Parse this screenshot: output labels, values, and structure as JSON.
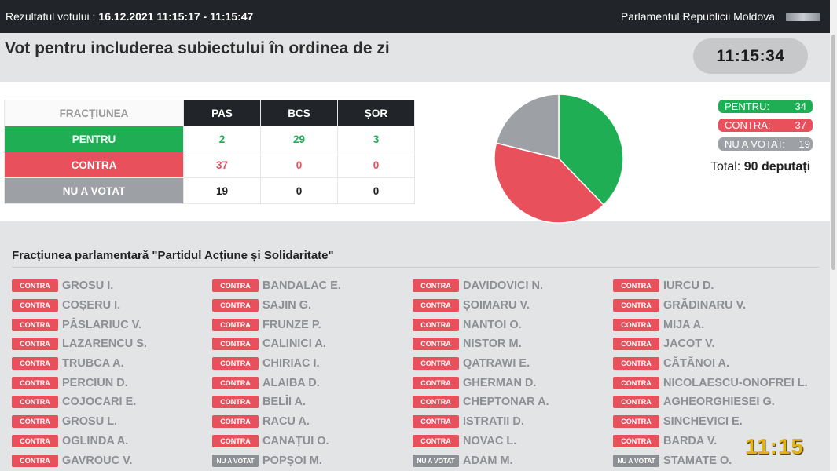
{
  "topbar": {
    "label": "Rezultatul votului :",
    "datetime": "16.12.2021 11:15:17 - 11:15:47",
    "institution": "Parlamentul Republicii Moldova"
  },
  "header": {
    "title": "Vot pentru includerea subiectului în ordinea de zi",
    "clock": "11:15:34"
  },
  "table": {
    "fraction_header": "FRACȚIUNEA",
    "parties": [
      "PAS",
      "BCS",
      "ȘOR"
    ],
    "rows": [
      {
        "label": "PENTRU",
        "values": [
          "2",
          "29",
          "3"
        ]
      },
      {
        "label": "CONTRA",
        "values": [
          "37",
          "0",
          "0"
        ]
      },
      {
        "label": "NU A VOTAT",
        "values": [
          "19",
          "0",
          "0"
        ]
      }
    ]
  },
  "chart_data": {
    "type": "pie",
    "categories": [
      "PENTRU",
      "CONTRA",
      "NU A VOTAT"
    ],
    "values": [
      34,
      37,
      19
    ],
    "colors": [
      "#1fae53",
      "#e8505b",
      "#9da0a4"
    ]
  },
  "legend": {
    "pentru_label": "PENTRU:",
    "pentru_value": "34",
    "contra_label": "CONTRA:",
    "contra_value": "37",
    "nu_label": "NU A VOTAT:",
    "nu_value": "19",
    "total_label": "Total:",
    "total_value": "90 deputați"
  },
  "faction": {
    "title": "Fracțiunea parlamentară \"Partidul Acțiune și Solidaritate\"",
    "columns": [
      [
        {
          "vote": "CONTRA",
          "name": "GROSU I."
        },
        {
          "vote": "CONTRA",
          "name": "COȘERU I."
        },
        {
          "vote": "CONTRA",
          "name": "PÂSLARIUC V."
        },
        {
          "vote": "CONTRA",
          "name": "LAZARENCU S."
        },
        {
          "vote": "CONTRA",
          "name": "TRUBCA A."
        },
        {
          "vote": "CONTRA",
          "name": "PERCIUN D."
        },
        {
          "vote": "CONTRA",
          "name": "COJOCARI E."
        },
        {
          "vote": "CONTRA",
          "name": "GROSU L."
        },
        {
          "vote": "CONTRA",
          "name": "OGLINDA A."
        },
        {
          "vote": "CONTRA",
          "name": "GAVROUC V."
        }
      ],
      [
        {
          "vote": "CONTRA",
          "name": "BANDALAC E."
        },
        {
          "vote": "CONTRA",
          "name": "SAJIN G."
        },
        {
          "vote": "CONTRA",
          "name": "FRUNZE P."
        },
        {
          "vote": "CONTRA",
          "name": "CALINICI A."
        },
        {
          "vote": "CONTRA",
          "name": "CHIRIAC I."
        },
        {
          "vote": "CONTRA",
          "name": "ALAIBA D."
        },
        {
          "vote": "CONTRA",
          "name": "BELÎI A."
        },
        {
          "vote": "CONTRA",
          "name": "RACU A."
        },
        {
          "vote": "CONTRA",
          "name": "CANAȚUI O."
        },
        {
          "vote": "NU A VOTAT",
          "name": "POPȘOI M."
        }
      ],
      [
        {
          "vote": "CONTRA",
          "name": "DAVIDOVICI N."
        },
        {
          "vote": "CONTRA",
          "name": "ȘOIMARU V."
        },
        {
          "vote": "CONTRA",
          "name": "NANTOI O."
        },
        {
          "vote": "CONTRA",
          "name": "NISTOR M."
        },
        {
          "vote": "CONTRA",
          "name": "QATRAWI E."
        },
        {
          "vote": "CONTRA",
          "name": "GHERMAN D."
        },
        {
          "vote": "CONTRA",
          "name": "CHEPTONAR A."
        },
        {
          "vote": "CONTRA",
          "name": "ISTRATII D."
        },
        {
          "vote": "CONTRA",
          "name": "NOVAC L."
        },
        {
          "vote": "NU A VOTAT",
          "name": "ADAM M."
        }
      ],
      [
        {
          "vote": "CONTRA",
          "name": "IURCU D."
        },
        {
          "vote": "CONTRA",
          "name": "GRĂDINARU V."
        },
        {
          "vote": "CONTRA",
          "name": "MIJA A."
        },
        {
          "vote": "CONTRA",
          "name": "JACOT V."
        },
        {
          "vote": "CONTRA",
          "name": "CĂTĂNOI A."
        },
        {
          "vote": "CONTRA",
          "name": "NICOLAESCU-ONOFREI L."
        },
        {
          "vote": "CONTRA",
          "name": "AGHEORGHIESEI G."
        },
        {
          "vote": "CONTRA",
          "name": "SINCHEVICI E."
        },
        {
          "vote": "CONTRA",
          "name": "BARDA V."
        },
        {
          "vote": "NU A VOTAT",
          "name": "STAMATE O."
        }
      ]
    ]
  },
  "overlay_time": "11:15"
}
